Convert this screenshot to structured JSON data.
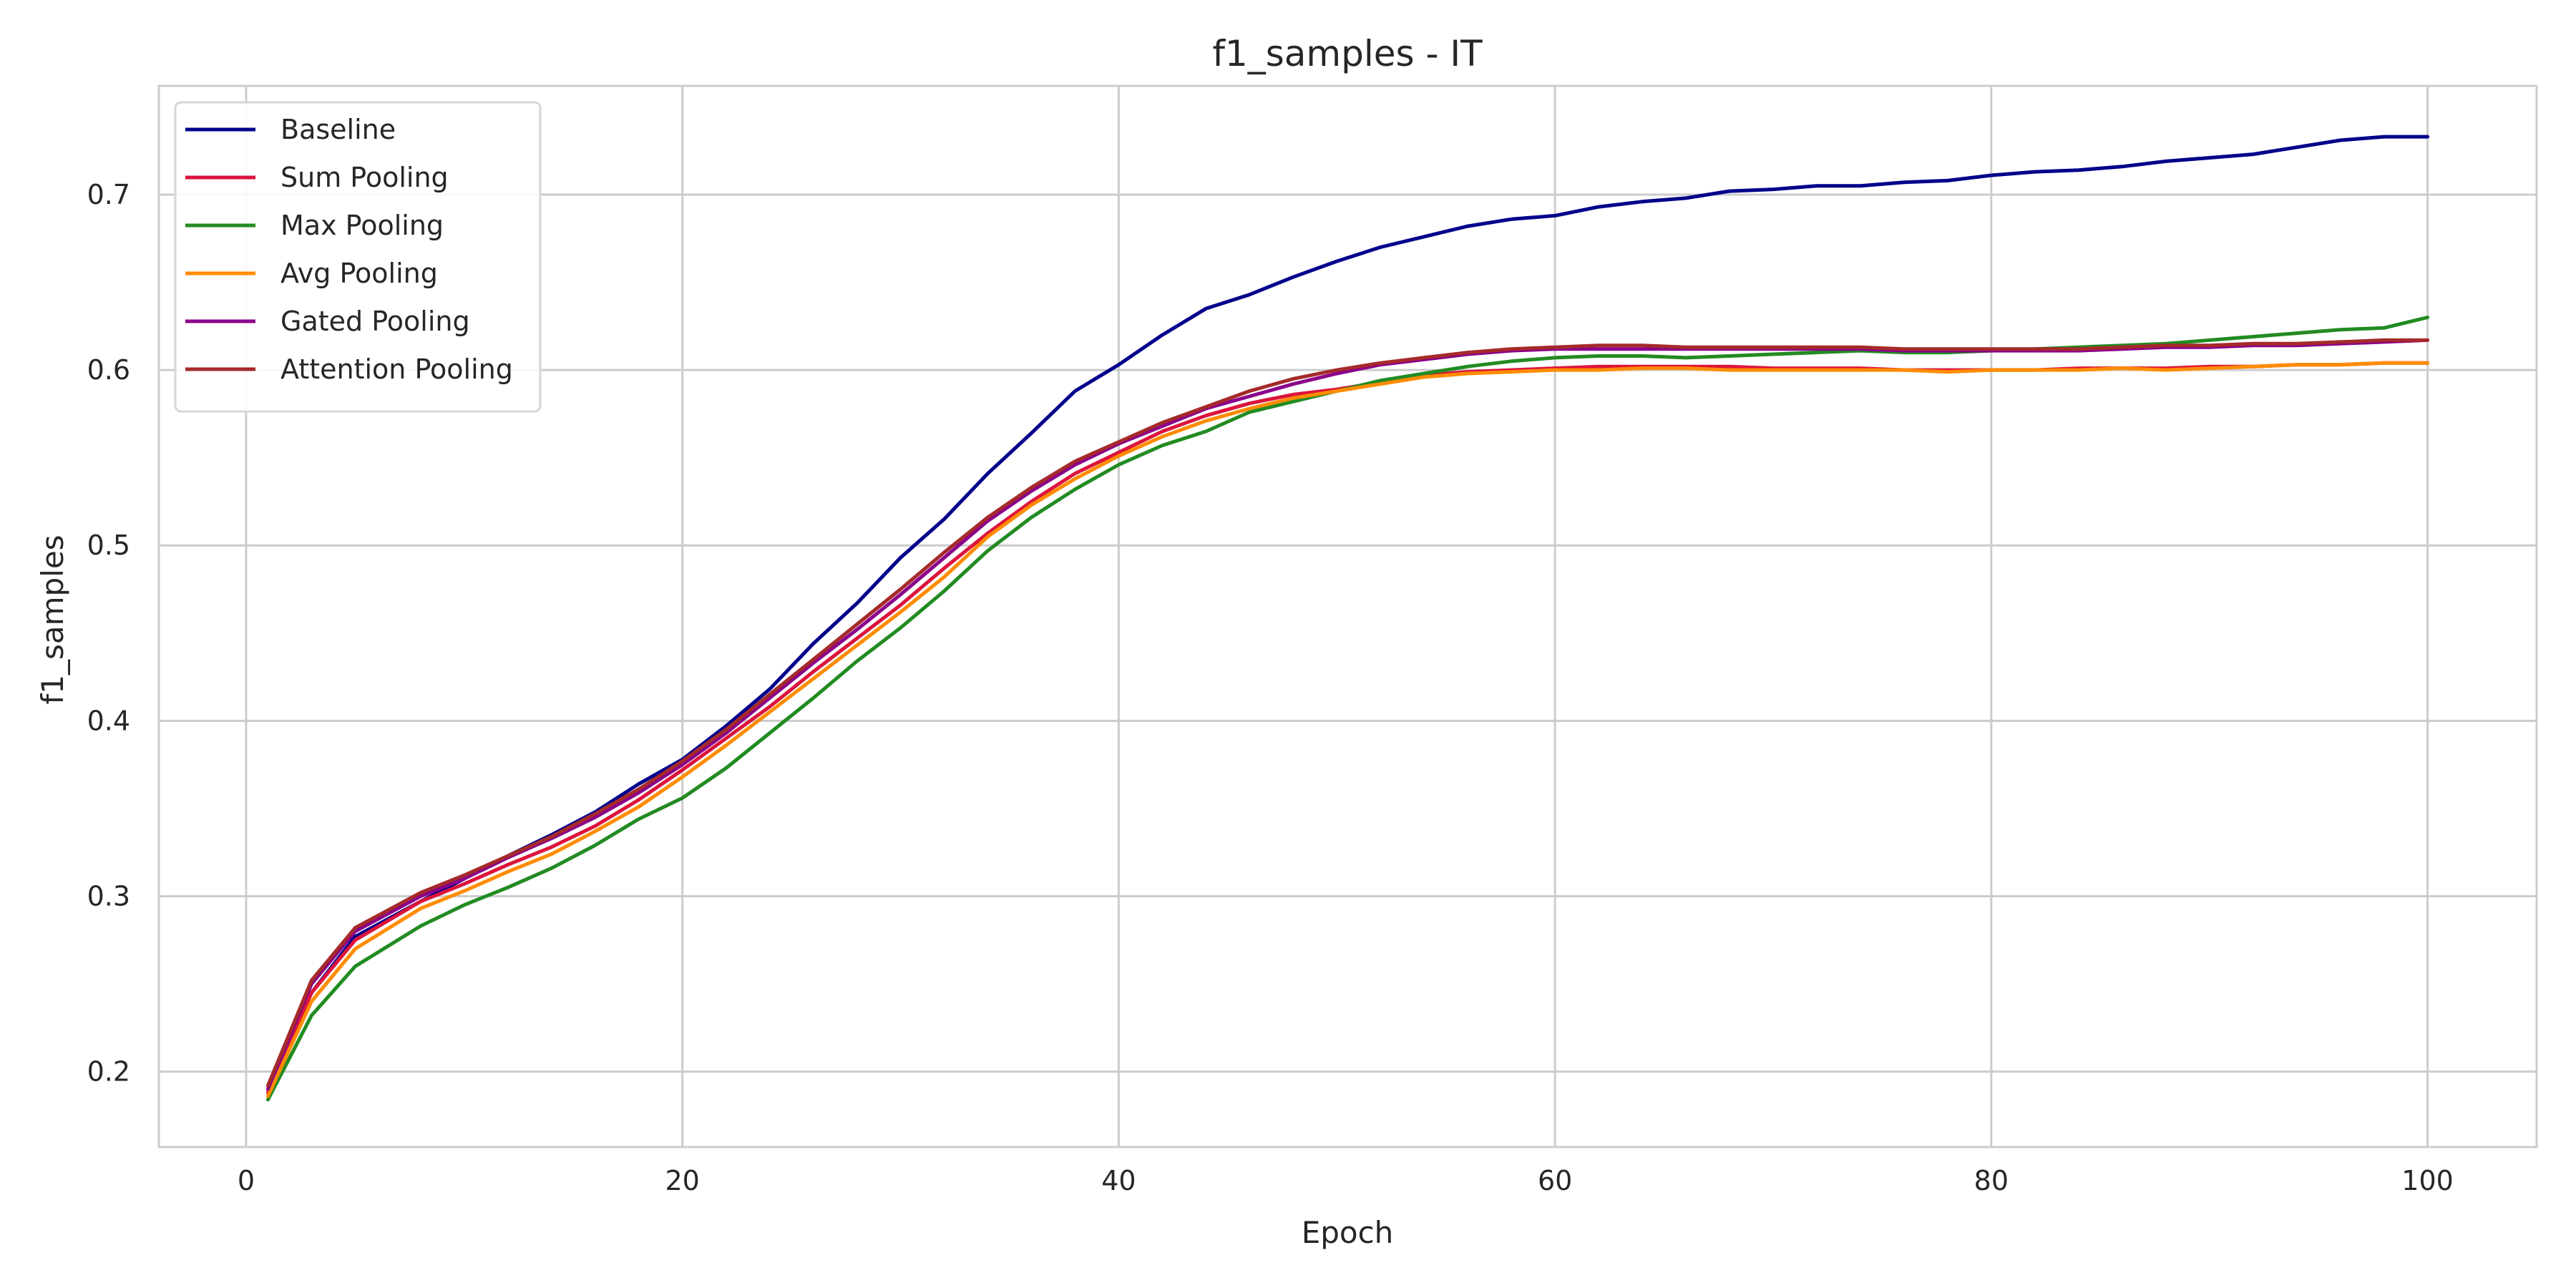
{
  "chart_data": {
    "type": "line",
    "title": "f1_samples - IT",
    "xlabel": "Epoch",
    "ylabel": "f1_samples",
    "xlim": [
      -4,
      105
    ],
    "ylim": [
      0.157,
      0.762
    ],
    "xticks": [
      0,
      20,
      40,
      60,
      80,
      100
    ],
    "yticks": [
      0.2,
      0.3,
      0.4,
      0.5,
      0.6,
      0.7
    ],
    "xtick_labels": [
      "0",
      "20",
      "40",
      "60",
      "80",
      "100"
    ],
    "ytick_labels": [
      "0.2",
      "0.3",
      "0.4",
      "0.5",
      "0.6",
      "0.7"
    ],
    "grid": true,
    "legend_position": "top-left",
    "series": [
      {
        "name": "Baseline",
        "color": "#00008b",
        "x": [
          1,
          3,
          5,
          8,
          10,
          12,
          14,
          16,
          18,
          20,
          22,
          24,
          26,
          28,
          30,
          32,
          34,
          36,
          38,
          40,
          42,
          44,
          46,
          48,
          50,
          52,
          54,
          56,
          58,
          60,
          62,
          64,
          66,
          68,
          70,
          72,
          74,
          76,
          78,
          80,
          82,
          84,
          86,
          88,
          90,
          92,
          94,
          96,
          98,
          100
        ],
        "y": [
          0.19,
          0.245,
          0.277,
          0.297,
          0.31,
          0.323,
          0.335,
          0.348,
          0.364,
          0.378,
          0.397,
          0.418,
          0.444,
          0.467,
          0.493,
          0.515,
          0.541,
          0.564,
          0.588,
          0.603,
          0.62,
          0.635,
          0.643,
          0.653,
          0.662,
          0.67,
          0.676,
          0.682,
          0.686,
          0.688,
          0.693,
          0.696,
          0.698,
          0.702,
          0.703,
          0.705,
          0.705,
          0.707,
          0.708,
          0.711,
          0.713,
          0.714,
          0.716,
          0.719,
          0.721,
          0.723,
          0.727,
          0.731,
          0.733,
          0.733
        ]
      },
      {
        "name": "Sum Pooling",
        "color": "#dc143c",
        "x": [
          1,
          3,
          5,
          8,
          10,
          12,
          14,
          16,
          18,
          20,
          22,
          24,
          26,
          28,
          30,
          32,
          34,
          36,
          38,
          40,
          42,
          44,
          46,
          48,
          50,
          52,
          54,
          56,
          58,
          60,
          62,
          64,
          66,
          68,
          70,
          72,
          74,
          76,
          78,
          80,
          82,
          84,
          86,
          88,
          90,
          92,
          94,
          96,
          98,
          100
        ],
        "y": [
          0.188,
          0.245,
          0.275,
          0.297,
          0.307,
          0.318,
          0.328,
          0.34,
          0.355,
          0.372,
          0.39,
          0.408,
          0.428,
          0.447,
          0.466,
          0.487,
          0.507,
          0.525,
          0.541,
          0.553,
          0.565,
          0.574,
          0.581,
          0.586,
          0.589,
          0.593,
          0.597,
          0.599,
          0.6,
          0.601,
          0.602,
          0.602,
          0.602,
          0.602,
          0.601,
          0.601,
          0.601,
          0.6,
          0.6,
          0.6,
          0.6,
          0.601,
          0.601,
          0.601,
          0.602,
          0.602,
          0.603,
          0.603,
          0.604,
          0.604
        ]
      },
      {
        "name": "Max Pooling",
        "color": "#228b22",
        "x": [
          1,
          3,
          5,
          8,
          10,
          12,
          14,
          16,
          18,
          20,
          22,
          24,
          26,
          28,
          30,
          32,
          34,
          36,
          38,
          40,
          42,
          44,
          46,
          48,
          50,
          52,
          54,
          56,
          58,
          60,
          62,
          64,
          66,
          68,
          70,
          72,
          74,
          76,
          78,
          80,
          82,
          84,
          86,
          88,
          90,
          92,
          94,
          96,
          98,
          100
        ],
        "y": [
          0.184,
          0.232,
          0.26,
          0.283,
          0.295,
          0.305,
          0.316,
          0.329,
          0.344,
          0.356,
          0.373,
          0.393,
          0.413,
          0.434,
          0.453,
          0.474,
          0.497,
          0.516,
          0.532,
          0.546,
          0.557,
          0.565,
          0.576,
          0.582,
          0.588,
          0.594,
          0.598,
          0.602,
          0.605,
          0.607,
          0.608,
          0.608,
          0.607,
          0.608,
          0.609,
          0.61,
          0.611,
          0.61,
          0.61,
          0.611,
          0.612,
          0.613,
          0.614,
          0.615,
          0.617,
          0.619,
          0.621,
          0.623,
          0.624,
          0.63
        ]
      },
      {
        "name": "Avg Pooling",
        "color": "#ff8c00",
        "x": [
          1,
          3,
          5,
          8,
          10,
          12,
          14,
          16,
          18,
          20,
          22,
          24,
          26,
          28,
          30,
          32,
          34,
          36,
          38,
          40,
          42,
          44,
          46,
          48,
          50,
          52,
          54,
          56,
          58,
          60,
          62,
          64,
          66,
          68,
          70,
          72,
          74,
          76,
          78,
          80,
          82,
          84,
          86,
          88,
          90,
          92,
          94,
          96,
          98,
          100
        ],
        "y": [
          0.186,
          0.24,
          0.27,
          0.293,
          0.303,
          0.314,
          0.324,
          0.337,
          0.351,
          0.368,
          0.386,
          0.405,
          0.424,
          0.443,
          0.462,
          0.482,
          0.505,
          0.523,
          0.538,
          0.551,
          0.562,
          0.571,
          0.578,
          0.584,
          0.588,
          0.592,
          0.596,
          0.598,
          0.599,
          0.6,
          0.6,
          0.601,
          0.601,
          0.6,
          0.6,
          0.6,
          0.6,
          0.6,
          0.599,
          0.6,
          0.6,
          0.6,
          0.601,
          0.6,
          0.601,
          0.602,
          0.603,
          0.603,
          0.604,
          0.604
        ]
      },
      {
        "name": "Gated Pooling",
        "color": "#8b008b",
        "x": [
          1,
          3,
          5,
          8,
          10,
          12,
          14,
          16,
          18,
          20,
          22,
          24,
          26,
          28,
          30,
          32,
          34,
          36,
          38,
          40,
          42,
          44,
          46,
          48,
          50,
          52,
          54,
          56,
          58,
          60,
          62,
          64,
          66,
          68,
          70,
          72,
          74,
          76,
          78,
          80,
          82,
          84,
          86,
          88,
          90,
          92,
          94,
          96,
          98,
          100
        ],
        "y": [
          0.19,
          0.25,
          0.28,
          0.3,
          0.31,
          0.322,
          0.333,
          0.345,
          0.359,
          0.375,
          0.393,
          0.413,
          0.433,
          0.452,
          0.472,
          0.493,
          0.514,
          0.531,
          0.546,
          0.558,
          0.568,
          0.578,
          0.585,
          0.592,
          0.598,
          0.603,
          0.606,
          0.609,
          0.611,
          0.612,
          0.612,
          0.612,
          0.612,
          0.612,
          0.612,
          0.612,
          0.612,
          0.611,
          0.611,
          0.611,
          0.611,
          0.611,
          0.612,
          0.613,
          0.613,
          0.614,
          0.614,
          0.615,
          0.616,
          0.617
        ]
      },
      {
        "name": "Attention Pooling",
        "color": "#a52a2a",
        "x": [
          1,
          3,
          5,
          8,
          10,
          12,
          14,
          16,
          18,
          20,
          22,
          24,
          26,
          28,
          30,
          32,
          34,
          36,
          38,
          40,
          42,
          44,
          46,
          48,
          50,
          52,
          54,
          56,
          58,
          60,
          62,
          64,
          66,
          68,
          70,
          72,
          74,
          76,
          78,
          80,
          82,
          84,
          86,
          88,
          90,
          92,
          94,
          96,
          98,
          100
        ],
        "y": [
          0.192,
          0.252,
          0.282,
          0.302,
          0.312,
          0.323,
          0.334,
          0.347,
          0.361,
          0.377,
          0.395,
          0.415,
          0.435,
          0.455,
          0.475,
          0.496,
          0.516,
          0.533,
          0.548,
          0.559,
          0.57,
          0.579,
          0.588,
          0.595,
          0.6,
          0.604,
          0.607,
          0.61,
          0.612,
          0.613,
          0.614,
          0.614,
          0.613,
          0.613,
          0.613,
          0.613,
          0.613,
          0.612,
          0.612,
          0.612,
          0.612,
          0.612,
          0.613,
          0.614,
          0.614,
          0.615,
          0.615,
          0.616,
          0.617,
          0.617
        ]
      }
    ]
  }
}
